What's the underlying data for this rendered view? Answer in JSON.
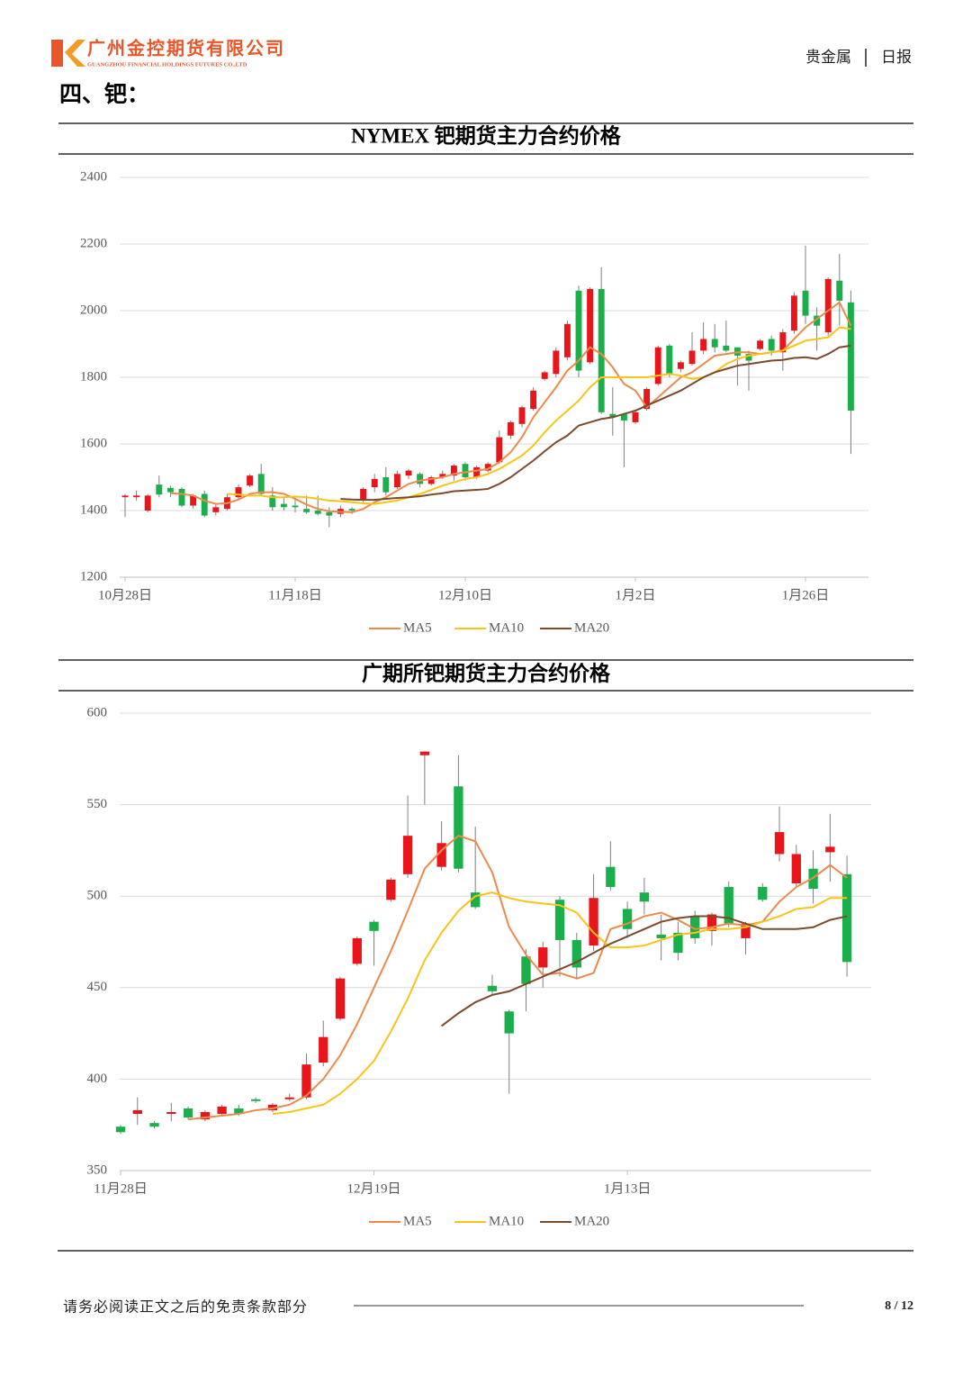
{
  "header": {
    "company": "广州金控期货有限公司",
    "company_en": "GUANGZHOU FINANCIAL HOLDINGS FUTURES CO.,LTD",
    "category": "贵金属",
    "report_type": "日报"
  },
  "section_title": "四、钯：",
  "chart_data": [
    {
      "type": "candlestick",
      "title": "NYMEX 钯期货主力合约价格",
      "categories": [
        "10月28日",
        null,
        null,
        null,
        null,
        null,
        null,
        null,
        null,
        null,
        null,
        null,
        null,
        null,
        null,
        "11月18日",
        null,
        null,
        null,
        null,
        null,
        null,
        null,
        null,
        null,
        null,
        null,
        null,
        null,
        null,
        "12月10日",
        null,
        null,
        null,
        null,
        null,
        null,
        null,
        null,
        null,
        null,
        null,
        null,
        null,
        null,
        "1月2日",
        null,
        null,
        null,
        null,
        null,
        null,
        null,
        null,
        null,
        null,
        null,
        null,
        null,
        null,
        "1月26日",
        null,
        null,
        null,
        null
      ],
      "open": [
        1440,
        1440,
        1400,
        1478,
        1468,
        1465,
        1415,
        1450,
        1395,
        1405,
        1440,
        1475,
        1510,
        1445,
        1420,
        1415,
        1405,
        1400,
        1395,
        1390,
        1405,
        1430,
        1470,
        1500,
        1470,
        1505,
        1510,
        1480,
        1500,
        1505,
        1540,
        1500,
        1520,
        1545,
        1625,
        1660,
        1705,
        1795,
        1810,
        1860,
        2060,
        1845,
        2065,
        1690,
        1690,
        1665,
        1705,
        1780,
        1895,
        1825,
        1840,
        1880,
        1915,
        1895,
        1890,
        1870,
        1885,
        1915,
        1875,
        1940,
        2060,
        1985,
        1935,
        2090,
        2025
      ],
      "high": [
        1450,
        1460,
        1450,
        1505,
        1475,
        1470,
        1450,
        1460,
        1420,
        1450,
        1478,
        1510,
        1540,
        1470,
        1440,
        1445,
        1445,
        1445,
        1410,
        1415,
        1410,
        1470,
        1510,
        1530,
        1520,
        1525,
        1515,
        1505,
        1520,
        1540,
        1545,
        1535,
        1545,
        1640,
        1670,
        1715,
        1770,
        1820,
        1890,
        1970,
        2075,
        2070,
        2130,
        1770,
        1690,
        1700,
        1770,
        1895,
        1900,
        1850,
        1935,
        1965,
        1960,
        1970,
        1890,
        1880,
        1915,
        1925,
        1945,
        2055,
        2195,
        2010,
        2100,
        2170,
        2060
      ],
      "low": [
        1380,
        1430,
        1395,
        1440,
        1440,
        1410,
        1405,
        1380,
        1385,
        1400,
        1435,
        1470,
        1445,
        1400,
        1400,
        1395,
        1390,
        1385,
        1350,
        1380,
        1390,
        1425,
        1455,
        1445,
        1465,
        1495,
        1470,
        1475,
        1495,
        1490,
        1490,
        1495,
        1515,
        1540,
        1615,
        1650,
        1700,
        1790,
        1800,
        1850,
        1800,
        1840,
        1690,
        1625,
        1530,
        1660,
        1700,
        1775,
        1800,
        1815,
        1835,
        1870,
        1875,
        1875,
        1775,
        1760,
        1880,
        1865,
        1820,
        1930,
        1960,
        1880,
        1925,
        1955,
        1570
      ],
      "close": [
        1445,
        1445,
        1445,
        1448,
        1455,
        1415,
        1445,
        1385,
        1410,
        1440,
        1470,
        1505,
        1450,
        1410,
        1410,
        1410,
        1395,
        1390,
        1385,
        1405,
        1400,
        1465,
        1495,
        1455,
        1510,
        1520,
        1480,
        1500,
        1510,
        1535,
        1500,
        1530,
        1540,
        1620,
        1665,
        1710,
        1760,
        1815,
        1880,
        1960,
        1820,
        2065,
        1695,
        1680,
        1670,
        1695,
        1765,
        1890,
        1810,
        1845,
        1880,
        1915,
        1890,
        1880,
        1865,
        1850,
        1910,
        1880,
        1935,
        2045,
        1985,
        1955,
        2095,
        2030,
        1700
      ],
      "up_color": "#e8161b",
      "down_color": "#1aaf4b",
      "series": [
        {
          "name": "MA5",
          "color": "#ec8a4b",
          "values": [
            null,
            null,
            null,
            null,
            1452,
            1450,
            1445,
            1430,
            1420,
            1422,
            1433,
            1450,
            1455,
            1455,
            1450,
            1435,
            1418,
            1405,
            1398,
            1396,
            1395,
            1405,
            1425,
            1440,
            1460,
            1480,
            1490,
            1495,
            1500,
            1510,
            1515,
            1520,
            1525,
            1545,
            1575,
            1620,
            1680,
            1725,
            1770,
            1820,
            1850,
            1890,
            1870,
            1830,
            1780,
            1760,
            1710,
            1740,
            1770,
            1800,
            1815,
            1840,
            1865,
            1870,
            1875,
            1875,
            1870,
            1875,
            1880,
            1915,
            1950,
            1975,
            2000,
            2025,
            1955
          ]
        },
        {
          "name": "MA10",
          "color": "#f8c418",
          "values": [
            null,
            null,
            null,
            null,
            null,
            null,
            null,
            null,
            null,
            1450,
            1448,
            1445,
            1445,
            1440,
            1440,
            1442,
            1440,
            1435,
            1430,
            1428,
            1425,
            1422,
            1420,
            1425,
            1430,
            1440,
            1450,
            1462,
            1475,
            1485,
            1495,
            1500,
            1510,
            1525,
            1545,
            1565,
            1595,
            1635,
            1670,
            1700,
            1730,
            1770,
            1800,
            1800,
            1800,
            1800,
            1800,
            1805,
            1810,
            1805,
            1795,
            1800,
            1815,
            1840,
            1855,
            1865,
            1870,
            1875,
            1880,
            1895,
            1910,
            1915,
            1920,
            1950,
            1945
          ]
        },
        {
          "name": "MA20",
          "color": "#7b4a2c",
          "values": [
            null,
            null,
            null,
            null,
            null,
            null,
            null,
            null,
            null,
            null,
            null,
            null,
            null,
            null,
            null,
            null,
            null,
            null,
            null,
            1435,
            1433,
            1432,
            1432,
            1435,
            1438,
            1440,
            1443,
            1448,
            1452,
            1458,
            1460,
            1462,
            1465,
            1480,
            1500,
            1525,
            1550,
            1578,
            1605,
            1625,
            1655,
            1665,
            1675,
            1680,
            1690,
            1700,
            1715,
            1730,
            1745,
            1760,
            1780,
            1800,
            1815,
            1825,
            1835,
            1840,
            1845,
            1850,
            1852,
            1858,
            1860,
            1855,
            1870,
            1890,
            1895
          ]
        }
      ],
      "ylim": [
        1200,
        2400
      ],
      "yticks": [
        1200,
        1400,
        1600,
        1800,
        2000,
        2200,
        2400
      ],
      "grid": true,
      "legend": "bottom"
    },
    {
      "type": "candlestick",
      "title": "广期所钯期货主力合约价格",
      "categories": [
        "11月28日",
        null,
        null,
        null,
        null,
        null,
        null,
        null,
        null,
        null,
        null,
        null,
        null,
        null,
        null,
        "12月19日",
        null,
        null,
        null,
        null,
        null,
        null,
        null,
        null,
        null,
        null,
        null,
        null,
        null,
        null,
        "1月13日",
        null,
        null,
        null,
        null,
        null,
        null,
        null,
        null,
        null,
        null,
        null,
        null,
        null
      ],
      "open": [
        374,
        381,
        376,
        381,
        384,
        378,
        381,
        384,
        389,
        383,
        389,
        390,
        409,
        433,
        463,
        486,
        498,
        512,
        577,
        516,
        560,
        502,
        451,
        437,
        467,
        461,
        498,
        476,
        473,
        516,
        493,
        502,
        479,
        480,
        489,
        481,
        505,
        477,
        505,
        523,
        507,
        515,
        524,
        512
      ],
      "high": [
        375,
        390,
        377,
        387,
        385,
        383,
        386,
        386,
        390,
        387,
        392,
        414,
        432,
        456,
        478,
        487,
        510,
        555,
        579,
        541,
        577,
        538,
        457,
        438,
        471,
        475,
        500,
        480,
        512,
        530,
        497,
        510,
        490,
        486,
        492,
        491,
        508,
        486,
        507,
        549,
        528,
        525,
        545,
        522
      ],
      "low": [
        370,
        375,
        373,
        377,
        378,
        377,
        380,
        380,
        387,
        382,
        388,
        389,
        407,
        432,
        462,
        462,
        497,
        510,
        550,
        514,
        513,
        493,
        446,
        392,
        437,
        450,
        456,
        455,
        470,
        503,
        477,
        490,
        465,
        465,
        474,
        473,
        483,
        468,
        497,
        519,
        505,
        496,
        508,
        456
      ],
      "close": [
        371,
        383,
        374,
        382,
        379,
        382,
        385,
        381,
        388,
        386,
        390,
        408,
        423,
        455,
        477,
        481,
        509,
        533,
        579,
        529,
        515,
        494,
        448,
        425,
        452,
        472,
        476,
        461,
        499,
        505,
        482,
        497,
        477,
        469,
        477,
        490,
        485,
        485,
        498,
        535,
        523,
        504,
        527,
        464
      ],
      "up_color": "#e8161b",
      "down_color": "#1aaf4b",
      "series": [
        {
          "name": "MA5",
          "color": "#ec8a4b",
          "values": [
            null,
            null,
            null,
            null,
            378,
            379,
            380,
            381,
            383,
            384,
            386,
            391,
            400,
            413,
            430,
            450,
            470,
            492,
            515,
            525,
            533,
            530,
            513,
            483,
            468,
            457,
            458,
            455,
            458,
            482,
            485,
            489,
            491,
            487,
            482,
            483,
            485,
            484,
            486,
            497,
            505,
            510,
            517,
            510
          ]
        },
        {
          "name": "MA10",
          "color": "#f8c418",
          "values": [
            null,
            null,
            null,
            null,
            null,
            null,
            null,
            null,
            null,
            381,
            382,
            384,
            386,
            392,
            400,
            410,
            426,
            444,
            465,
            480,
            492,
            500,
            502,
            499,
            497,
            496,
            495,
            491,
            480,
            472,
            472,
            473,
            476,
            479,
            480,
            482,
            482,
            483,
            486,
            489,
            493,
            494,
            499,
            499
          ]
        },
        {
          "name": "MA20",
          "color": "#7b4a2c",
          "values": [
            null,
            null,
            null,
            null,
            null,
            null,
            null,
            null,
            null,
            null,
            null,
            null,
            null,
            null,
            null,
            null,
            null,
            null,
            null,
            429,
            436,
            442,
            446,
            448,
            452,
            456,
            460,
            464,
            469,
            474,
            478,
            482,
            486,
            488,
            489,
            489,
            488,
            485,
            482,
            482,
            482,
            483,
            487,
            489
          ]
        }
      ],
      "ylim": [
        350,
        600
      ],
      "yticks": [
        350,
        400,
        450,
        500,
        550,
        600
      ],
      "grid": true,
      "legend": "bottom"
    }
  ],
  "footer": {
    "disclaimer": "请务必阅读正文之后的免责条款部分",
    "page": "8 / 12"
  }
}
